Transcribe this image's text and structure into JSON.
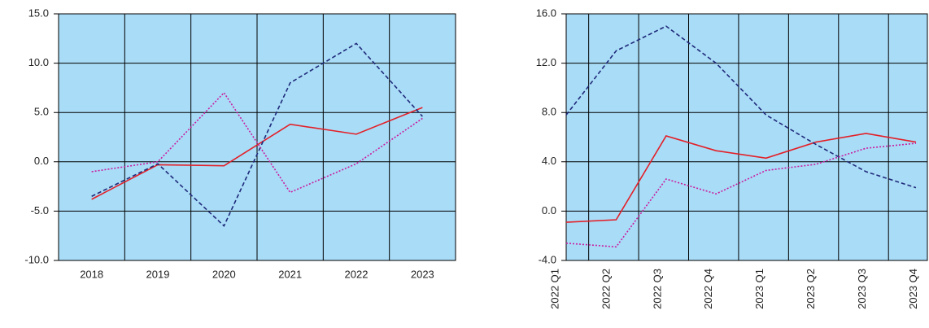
{
  "chart_data": [
    {
      "type": "line",
      "categories": [
        "2018",
        "2019",
        "2020",
        "2021",
        "2022",
        "2023"
      ],
      "ylim": [
        -10,
        15
      ],
      "yticks": [
        {
          "value": -10,
          "label": "-10.0"
        },
        {
          "value": -5,
          "label": "-5.0"
        },
        {
          "value": 0,
          "label": "0.0"
        },
        {
          "value": 5,
          "label": "5.0"
        },
        {
          "value": 10,
          "label": "10.0"
        },
        {
          "value": 15,
          "label": "15.0"
        }
      ],
      "grid": true,
      "series": [
        {
          "color": "#e32028",
          "style": "solid",
          "values": [
            -3.8,
            -0.3,
            -0.4,
            3.8,
            2.8,
            5.5
          ]
        },
        {
          "color": "#1f2a7a",
          "style": "dashed",
          "values": [
            -3.5,
            -0.2,
            -6.5,
            8.0,
            12.0,
            4.6
          ]
        },
        {
          "color": "#c81ea0",
          "style": "dotted",
          "values": [
            -1.0,
            0.0,
            7.0,
            -3.1,
            -0.2,
            4.4
          ]
        }
      ]
    },
    {
      "type": "line",
      "categories": [
        "2022 Q1",
        "2022 Q2",
        "2022 Q3",
        "2022 Q4",
        "2023 Q1",
        "2023 Q2",
        "2023 Q3",
        "2023 Q4"
      ],
      "ylim": [
        -4,
        16
      ],
      "yticks": [
        {
          "value": -4,
          "label": "-4.0"
        },
        {
          "value": 0,
          "label": "0.0"
        },
        {
          "value": 4,
          "label": "4.0"
        },
        {
          "value": 8,
          "label": "8.0"
        },
        {
          "value": 12,
          "label": "12.0"
        },
        {
          "value": 16,
          "label": "16.0"
        }
      ],
      "grid": true,
      "series": [
        {
          "color": "#e32028",
          "style": "solid",
          "values": [
            -0.9,
            -0.7,
            6.1,
            4.9,
            4.3,
            5.6,
            6.3,
            5.6
          ]
        },
        {
          "color": "#1f2a7a",
          "style": "dashed",
          "values": [
            7.8,
            13.0,
            15.0,
            12.0,
            7.8,
            5.4,
            3.2,
            1.9
          ]
        },
        {
          "color": "#c81ea0",
          "style": "dotted",
          "values": [
            -2.6,
            -2.9,
            2.6,
            1.4,
            3.3,
            3.8,
            5.1,
            5.5
          ]
        }
      ]
    }
  ]
}
